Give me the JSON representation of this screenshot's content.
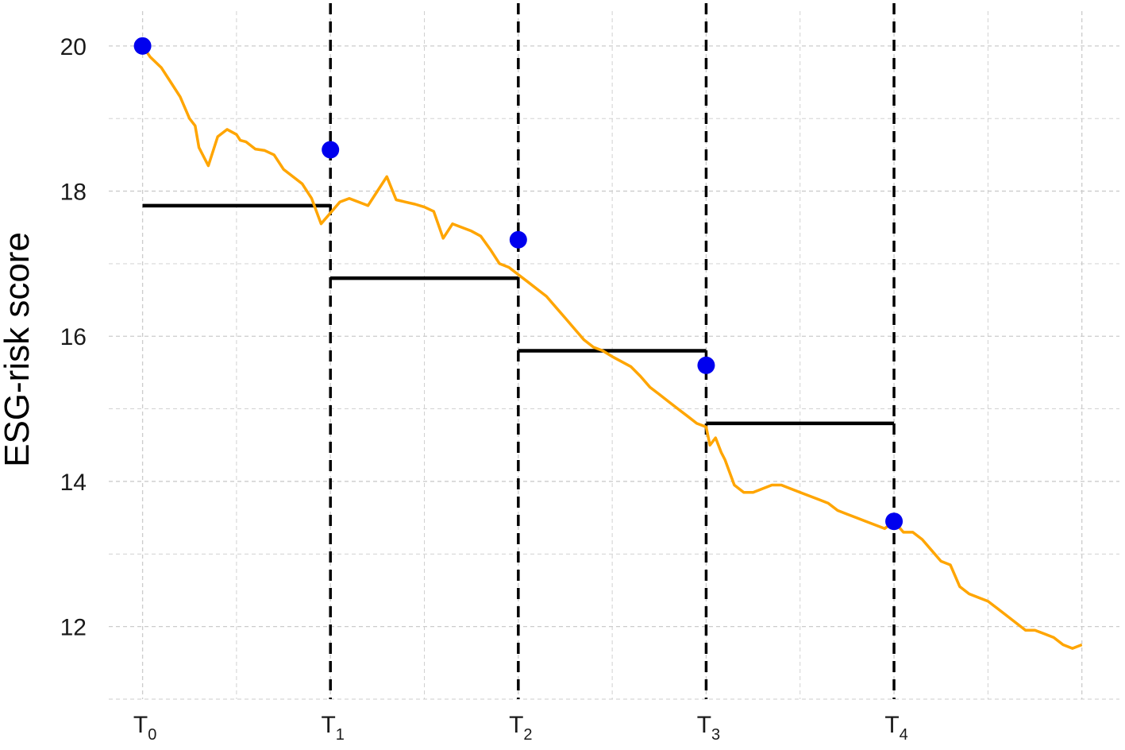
{
  "chart_data": {
    "type": "line",
    "title": "",
    "xlabel": "",
    "ylabel": "ESG-risk score",
    "x_ticks": [
      {
        "base": "T",
        "sub": "0",
        "x": 0
      },
      {
        "base": "T",
        "sub": "1",
        "x": 1
      },
      {
        "base": "T",
        "sub": "2",
        "x": 2
      },
      {
        "base": "T",
        "sub": "3",
        "x": 3
      },
      {
        "base": "T",
        "sub": "4",
        "x": 4
      }
    ],
    "y_ticks": [
      "12",
      "14",
      "16",
      "18",
      "20"
    ],
    "xlim": [
      -0.18,
      5.2
    ],
    "ylim": [
      11.0,
      20.48
    ],
    "grid": true,
    "colors": {
      "series": "#FFA500",
      "points": "#0000EE",
      "steps": "#000000",
      "grid": "#cccccc"
    },
    "series": [
      {
        "type": "line",
        "color": "#FFA500",
        "x": [
          0,
          0.04,
          0.1,
          0.15,
          0.2,
          0.25,
          0.28,
          0.3,
          0.33,
          0.35,
          0.4,
          0.45,
          0.5,
          0.52,
          0.55,
          0.6,
          0.65,
          0.7,
          0.75,
          0.8,
          0.85,
          0.9,
          0.95,
          1.0,
          1.05,
          1.1,
          1.15,
          1.2,
          1.25,
          1.3,
          1.35,
          1.4,
          1.45,
          1.5,
          1.55,
          1.6,
          1.65,
          1.7,
          1.75,
          1.8,
          1.85,
          1.9,
          1.95,
          2.0,
          2.05,
          2.1,
          2.15,
          2.2,
          2.25,
          2.3,
          2.35,
          2.4,
          2.45,
          2.5,
          2.55,
          2.6,
          2.65,
          2.7,
          2.75,
          2.8,
          2.85,
          2.9,
          2.95,
          3.0,
          3.02,
          3.05,
          3.08,
          3.1,
          3.15,
          3.2,
          3.25,
          3.3,
          3.35,
          3.4,
          3.45,
          3.5,
          3.55,
          3.6,
          3.65,
          3.7,
          3.75,
          3.8,
          3.85,
          3.9,
          3.95,
          4.0,
          4.05,
          4.1,
          4.15,
          4.2,
          4.25,
          4.3,
          4.35,
          4.4,
          4.45,
          4.5,
          4.55,
          4.6,
          4.65,
          4.7,
          4.75,
          4.8,
          4.85,
          4.9,
          4.95,
          5.0
        ],
        "y": [
          20.0,
          19.85,
          19.7,
          19.5,
          19.3,
          19.0,
          18.9,
          18.6,
          18.45,
          18.35,
          18.75,
          18.85,
          18.78,
          18.7,
          18.68,
          18.58,
          18.56,
          18.5,
          18.3,
          18.2,
          18.1,
          17.9,
          17.55,
          17.7,
          17.85,
          17.9,
          17.85,
          17.8,
          18.0,
          18.2,
          17.88,
          17.85,
          17.82,
          17.78,
          17.72,
          17.35,
          17.55,
          17.5,
          17.45,
          17.38,
          17.2,
          17.0,
          16.95,
          16.85,
          16.75,
          16.65,
          16.55,
          16.4,
          16.25,
          16.1,
          15.95,
          15.85,
          15.8,
          15.72,
          15.65,
          15.58,
          15.45,
          15.3,
          15.2,
          15.1,
          15.0,
          14.9,
          14.8,
          14.75,
          14.5,
          14.6,
          14.4,
          14.3,
          13.95,
          13.85,
          13.85,
          13.9,
          13.95,
          13.95,
          13.9,
          13.85,
          13.8,
          13.75,
          13.7,
          13.6,
          13.55,
          13.5,
          13.45,
          13.4,
          13.35,
          13.45,
          13.3,
          13.3,
          13.2,
          13.05,
          12.9,
          12.85,
          12.55,
          12.45,
          12.4,
          12.35,
          12.25,
          12.15,
          12.05,
          11.95,
          11.95,
          11.9,
          11.85,
          11.75,
          11.7,
          11.75
        ]
      },
      {
        "type": "points",
        "color": "#0000EE",
        "x": [
          0,
          1,
          2,
          3,
          4
        ],
        "y": [
          20.0,
          18.57,
          17.33,
          15.6,
          13.45
        ]
      },
      {
        "type": "steps",
        "color": "#000000",
        "segments": [
          {
            "x0": 0,
            "x1": 1,
            "y": 17.8
          },
          {
            "x0": 1,
            "x1": 2,
            "y": 16.8
          },
          {
            "x0": 2,
            "x1": 3,
            "y": 15.8
          },
          {
            "x0": 3,
            "x1": 4,
            "y": 14.8
          }
        ]
      }
    ],
    "vlines": [
      1,
      2,
      3,
      4
    ]
  }
}
